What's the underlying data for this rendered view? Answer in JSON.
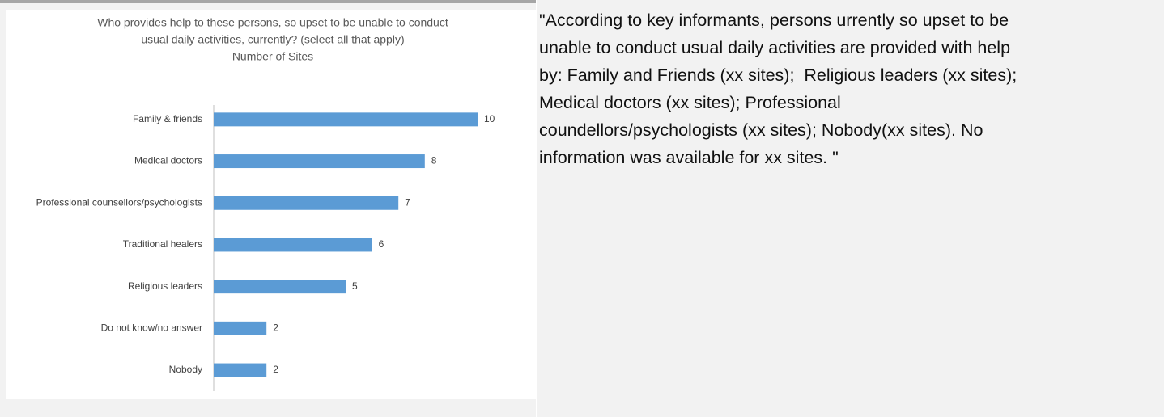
{
  "chart_data": {
    "type": "bar",
    "orientation": "horizontal",
    "title": [
      "Who provides help to these persons, so upset to be unable to conduct",
      "usual daily activities, currently? (select all that apply)"
    ],
    "subtitle": "Number of Sites",
    "categories": [
      "Family & friends",
      "Medical doctors",
      "Professional counsellors/psychologists",
      "Traditional healers",
      "Religious leaders",
      "Do not know/no answer",
      "Nobody"
    ],
    "values": [
      10,
      8,
      7,
      6,
      5,
      2,
      2
    ],
    "color": "#5b9bd5"
  },
  "cell_text": [
    "\"According to key informants, persons urrently so upset to be",
    "unable to conduct usual daily activities are provided with help",
    "by: Family and Friends (xx sites);  Religious leaders (xx sites);",
    "Medical doctors (xx sites); Professional",
    "coundellors/psychologists (xx sites); Nobody(xx sites). No",
    "information was available for xx sites. \""
  ]
}
